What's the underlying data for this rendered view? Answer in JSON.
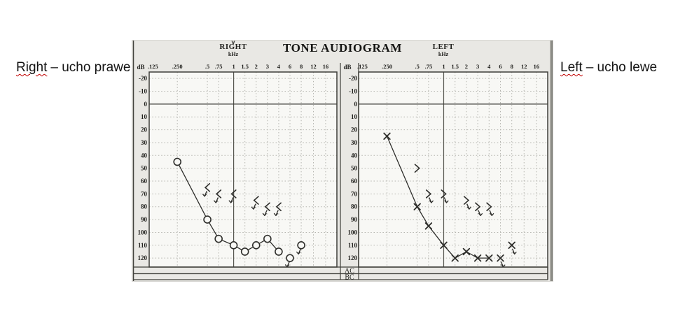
{
  "annotations": {
    "right_label": {
      "word": "Right",
      "rest": "– ucho prawe"
    },
    "left_label": {
      "word": "Left",
      "rest": "– ucho lewe"
    },
    "underline_color": "#c00000",
    "text_color": "#141414"
  },
  "form": {
    "title": "TONE AUDIOGRAM",
    "right_section": "RIGHT",
    "left_section": "LEFT",
    "khz_label": "kHz",
    "db_label": "dB",
    "ac_row_label": "AC",
    "bc_row_label": "BC",
    "caret_mark": "v",
    "frequency_labels": [
      ".125",
      ".250",
      ".5",
      ".75",
      "1",
      "1.5",
      "2",
      "3",
      "4",
      "6",
      "8",
      "12",
      "16"
    ],
    "db_ticks": [
      -20,
      -10,
      0,
      10,
      20,
      30,
      40,
      50,
      60,
      70,
      80,
      90,
      100,
      110,
      120
    ],
    "grid_color": "#b4b4ae",
    "line_color": "#3e3e39",
    "mark_color": "#2e2e2b",
    "plot_bg": "#f8f8f5"
  },
  "chart_data": [
    {
      "type": "scatter",
      "ear": "right",
      "title": "RIGHT",
      "xlabel": "kHz",
      "ylabel": "dB",
      "x_ticks_khz": [
        0.125,
        0.25,
        0.5,
        0.75,
        1,
        1.5,
        2,
        3,
        4,
        6,
        8,
        12,
        16
      ],
      "ylim": [
        -20,
        120
      ],
      "y_inverted": true,
      "grid": true,
      "legend": "none",
      "series": [
        {
          "name": "air-conduction",
          "symbol": "circle",
          "connected": true,
          "no_response_arrow": "none",
          "points_khz_db": [
            [
              0.25,
              45
            ],
            [
              0.5,
              90
            ],
            [
              0.75,
              105
            ],
            [
              1,
              110
            ],
            [
              1.5,
              115
            ],
            [
              2,
              110
            ],
            [
              3,
              105
            ],
            [
              4,
              115
            ]
          ]
        },
        {
          "name": "air-conduction-no-response",
          "symbol": "circle",
          "connected": false,
          "no_response_arrow": "down-left",
          "points_khz_db": [
            [
              6,
              120
            ],
            [
              8,
              110
            ]
          ]
        },
        {
          "name": "bone-conduction-no-response",
          "symbol": "angle-left",
          "connected": false,
          "no_response_arrow": "down-left",
          "points_khz_db": [
            [
              0.5,
              65
            ],
            [
              0.75,
              70
            ],
            [
              1,
              70
            ],
            [
              2,
              75
            ],
            [
              3,
              80
            ],
            [
              4,
              80
            ]
          ]
        }
      ]
    },
    {
      "type": "scatter",
      "ear": "left",
      "title": "LEFT",
      "xlabel": "kHz",
      "ylabel": "dB",
      "x_ticks_khz": [
        0.125,
        0.25,
        0.5,
        0.75,
        1,
        1.5,
        2,
        3,
        4,
        6,
        8,
        12,
        16
      ],
      "ylim": [
        -20,
        120
      ],
      "y_inverted": true,
      "grid": true,
      "legend": "none",
      "series": [
        {
          "name": "air-conduction",
          "symbol": "x",
          "connected": true,
          "no_response_arrow": "none",
          "points_khz_db": [
            [
              0.25,
              25
            ],
            [
              0.5,
              80
            ],
            [
              0.75,
              95
            ],
            [
              1,
              110
            ],
            [
              1.5,
              120
            ],
            [
              2,
              115
            ],
            [
              3,
              120
            ],
            [
              4,
              120
            ]
          ]
        },
        {
          "name": "air-conduction-no-response",
          "symbol": "x",
          "connected": false,
          "no_response_arrow": "down-right",
          "points_khz_db": [
            [
              6,
              120
            ],
            [
              8,
              110
            ]
          ]
        },
        {
          "name": "bone-conduction",
          "symbol": "angle-right",
          "connected": false,
          "no_response_arrow": "none",
          "points_khz_db": [
            [
              0.5,
              50
            ]
          ]
        },
        {
          "name": "bone-conduction-no-response",
          "symbol": "angle-right",
          "connected": false,
          "no_response_arrow": "down-right",
          "points_khz_db": [
            [
              0.75,
              70
            ],
            [
              1,
              70
            ],
            [
              2,
              75
            ],
            [
              3,
              80
            ],
            [
              4,
              80
            ]
          ]
        }
      ]
    }
  ]
}
